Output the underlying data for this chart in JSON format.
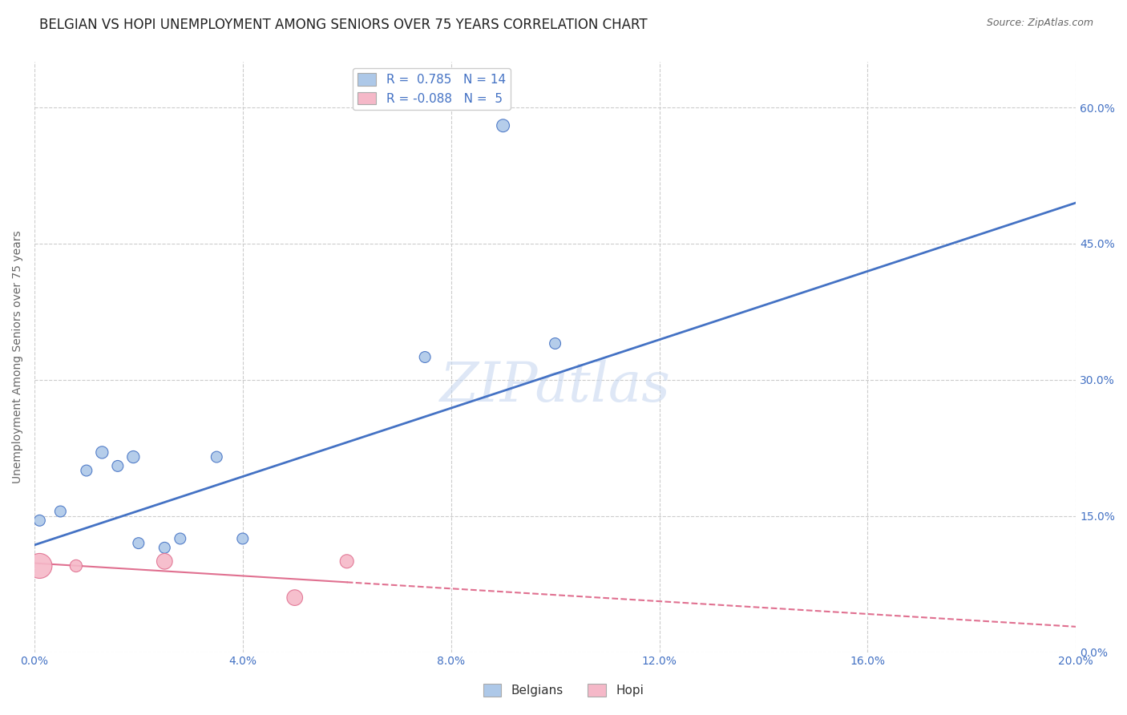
{
  "title": "BELGIAN VS HOPI UNEMPLOYMENT AMONG SENIORS OVER 75 YEARS CORRELATION CHART",
  "source": "Source: ZipAtlas.com",
  "ylabel": "Unemployment Among Seniors over 75 years",
  "xlim": [
    0.0,
    0.2
  ],
  "ylim": [
    0.0,
    0.65
  ],
  "xticks": [
    0.0,
    0.04,
    0.08,
    0.12,
    0.16,
    0.2
  ],
  "yticks_right": [
    0.0,
    0.15,
    0.3,
    0.45,
    0.6
  ],
  "belgian_r": 0.785,
  "belgian_n": 14,
  "hopi_r": -0.088,
  "hopi_n": 5,
  "belgian_color": "#adc8e8",
  "hopi_color": "#f5b8c8",
  "belgian_line_color": "#4472c4",
  "hopi_line_color": "#e07090",
  "background_color": "#ffffff",
  "grid_color": "#cccccc",
  "belgian_points_x": [
    0.001,
    0.005,
    0.01,
    0.013,
    0.016,
    0.019,
    0.02,
    0.025,
    0.028,
    0.035,
    0.04,
    0.075,
    0.09,
    0.1
  ],
  "belgian_points_y": [
    0.145,
    0.155,
    0.2,
    0.22,
    0.205,
    0.215,
    0.12,
    0.115,
    0.125,
    0.215,
    0.125,
    0.325,
    0.58,
    0.34
  ],
  "hopi_points_x": [
    0.001,
    0.008,
    0.025,
    0.05,
    0.06
  ],
  "hopi_points_y": [
    0.095,
    0.095,
    0.1,
    0.06,
    0.1
  ],
  "belgian_sizes": [
    100,
    100,
    100,
    120,
    100,
    120,
    100,
    100,
    100,
    100,
    100,
    100,
    130,
    100
  ],
  "hopi_sizes": [
    500,
    120,
    200,
    200,
    150
  ],
  "belgian_line_x0": 0.0,
  "belgian_line_y0": 0.118,
  "belgian_line_x1": 0.2,
  "belgian_line_y1": 0.495,
  "hopi_line_x0": 0.0,
  "hopi_line_y0": 0.098,
  "hopi_line_x1": 0.2,
  "hopi_line_y1": 0.028,
  "watermark": "ZIPatlas",
  "title_fontsize": 12,
  "legend_fontsize": 11,
  "axis_fontsize": 10
}
